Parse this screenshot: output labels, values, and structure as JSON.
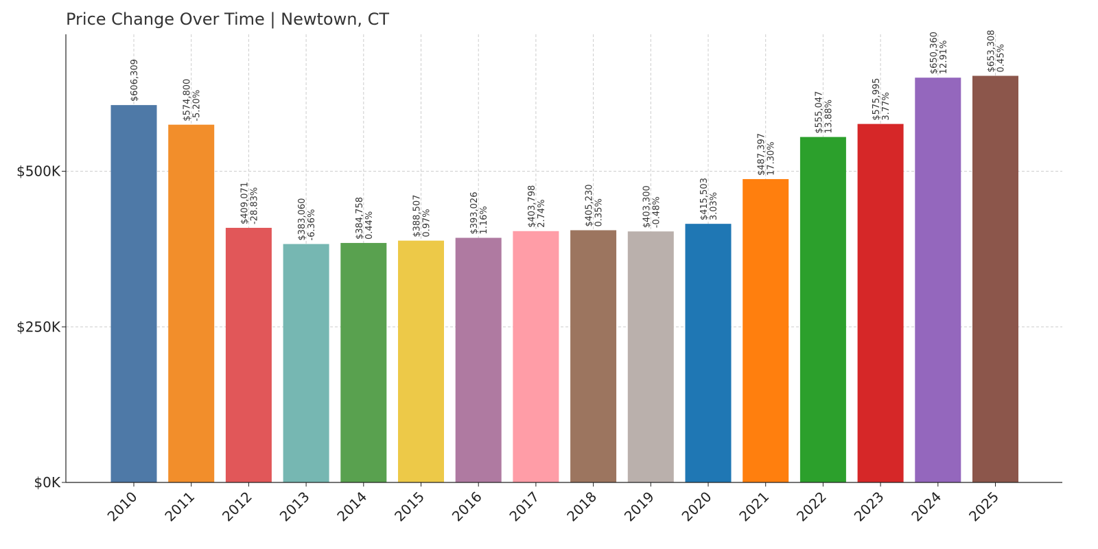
{
  "chart_data": {
    "type": "bar",
    "title": "Price Change Over Time | Newtown, CT",
    "xlabel": "",
    "ylabel": "",
    "categories": [
      "2010",
      "2011",
      "2012",
      "2013",
      "2014",
      "2015",
      "2016",
      "2017",
      "2018",
      "2019",
      "2020",
      "2021",
      "2022",
      "2023",
      "2024",
      "2025"
    ],
    "values": [
      606309,
      574800,
      409071,
      383060,
      384758,
      388507,
      393026,
      403798,
      405230,
      403300,
      415503,
      487397,
      555047,
      575995,
      650360,
      653308
    ],
    "value_labels": [
      "$606,309",
      "$574,800",
      "$409,071",
      "$383,060",
      "$384,758",
      "$388,507",
      "$393,026",
      "$403,798",
      "$405,230",
      "$403,300",
      "$415,503",
      "$487,397",
      "$555,047",
      "$575,995",
      "$650,360",
      "$653,308"
    ],
    "change_labels": [
      "",
      "-5.20%",
      "-28.83%",
      "-6.36%",
      "0.44%",
      "0.97%",
      "1.16%",
      "2.74%",
      "0.35%",
      "-0.48%",
      "3.03%",
      "17.30%",
      "13.88%",
      "3.77%",
      "12.91%",
      "0.45%"
    ],
    "colors": [
      "#4e79a7",
      "#f28e2b",
      "#e15759",
      "#76b7b2",
      "#59a14f",
      "#edc948",
      "#af7aa1",
      "#ff9da7",
      "#9c755f",
      "#bab0ac",
      "#1f77b4",
      "#ff7f0e",
      "#2ca02c",
      "#d62728",
      "#9467bd",
      "#8c564b"
    ],
    "yticks": [
      0,
      250000,
      500000
    ],
    "ytick_labels": [
      "$0K",
      "$250K",
      "$500K"
    ],
    "ylim": [
      0,
      720000
    ],
    "grid": true
  }
}
